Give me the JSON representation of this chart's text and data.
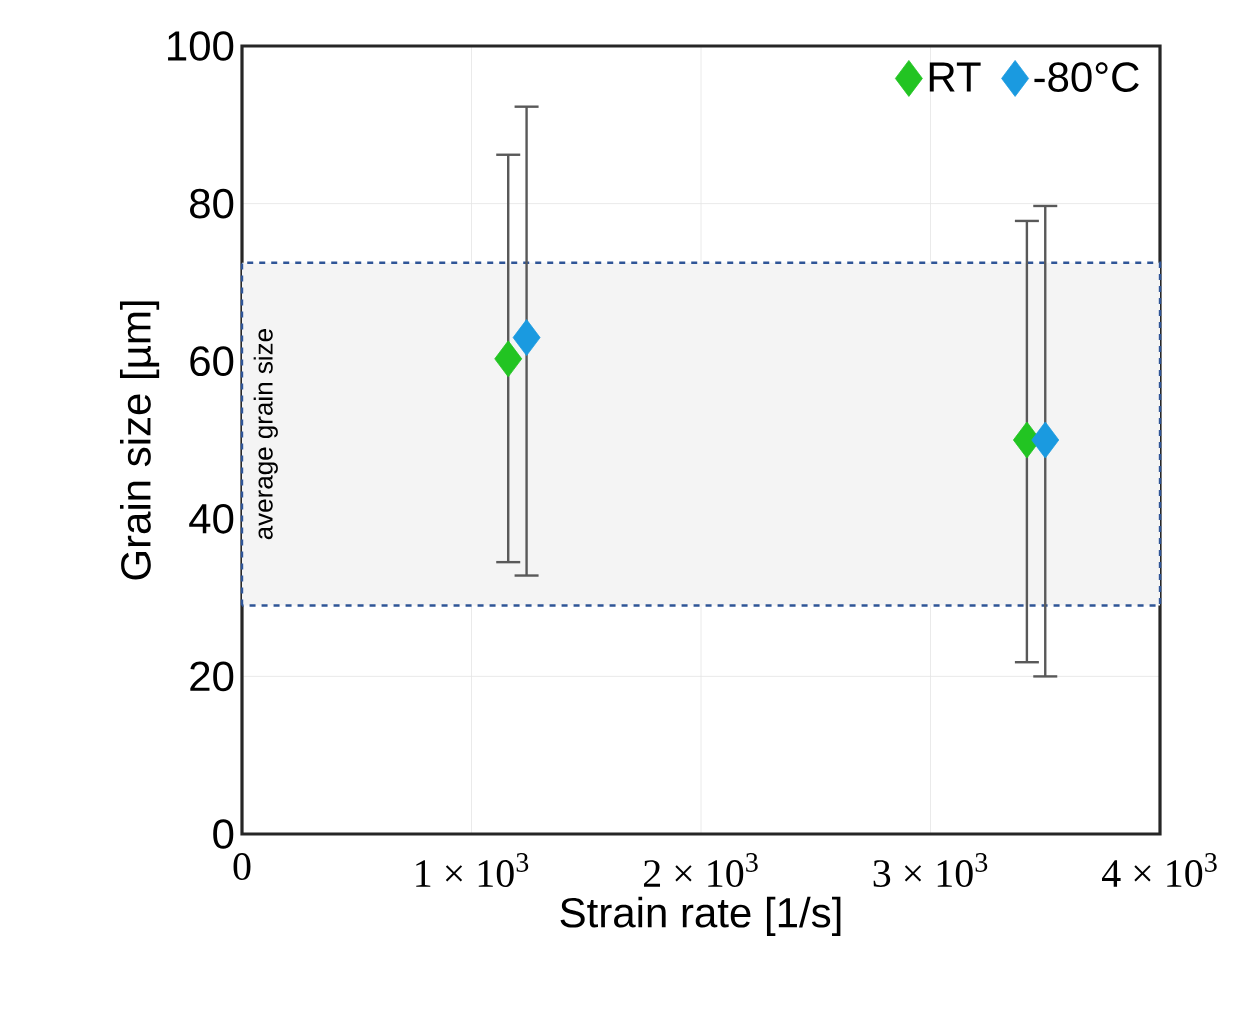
{
  "chart_data": {
    "type": "scatter",
    "xlabel": "Strain rate [1/s]",
    "ylabel": "Grain size [µm]",
    "series": [
      {
        "name": "RT",
        "color": "#22c422",
        "x": [
          1160,
          3420
        ],
        "values": [
          60.3,
          50
        ],
        "errors": [
          [
            34.5,
            86.2
          ],
          [
            21.8,
            77.8
          ]
        ]
      },
      {
        "name": "-80°C",
        "color": "#1a9ae0",
        "x": [
          1240,
          3500
        ],
        "values": [
          63,
          50
        ],
        "errors": [
          [
            32.8,
            92.3
          ],
          [
            20,
            79.7
          ]
        ]
      }
    ],
    "xlim": [
      0,
      4000
    ],
    "ylim": [
      0,
      100
    ],
    "xticks": [
      0,
      {
        "value": 1000,
        "label": "1 × 10$^{3}$"
      },
      {
        "value": 2000,
        "label": "2 × 10$^{3}$"
      },
      {
        "value": 3000,
        "label": "3 × 10$^{3}$"
      },
      {
        "value": 4000,
        "label": "4 × 10$^{3}$"
      }
    ],
    "yticks": [
      0,
      20,
      40,
      60,
      80,
      100
    ],
    "bands": [
      {
        "axis": "y",
        "from": 29,
        "to": 72.5,
        "label": "average grain size",
        "color": "#2f5597"
      }
    ],
    "grid": true,
    "legend": "top right",
    "marker": "diamond"
  }
}
